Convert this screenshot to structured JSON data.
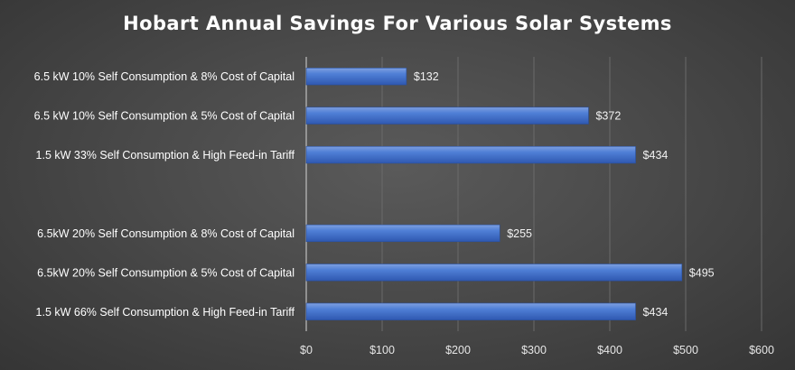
{
  "chart_data": {
    "type": "bar",
    "orientation": "horizontal",
    "title": "Hobart Annual Savings For Various Solar Systems",
    "categories": [
      "6.5 kW 10% Self Consumption & 8% Cost of Capital",
      "6.5 kW 10% Self Consumption & 5% Cost of Capital",
      "1.5 kW 33% Self Consumption & High Feed-in Tariff",
      "",
      "6.5kW 20% Self Consumption & 8% Cost of Capital",
      "6.5kW 20% Self Consumption & 5% Cost of Capital",
      "1.5 kW 66% Self Consumption & High Feed-in Tariff"
    ],
    "values": [
      132,
      372,
      434,
      null,
      255,
      495,
      434
    ],
    "value_labels": [
      "$132",
      "$372",
      "$434",
      "",
      "$255",
      "$495",
      "$434"
    ],
    "xlim": [
      0,
      600
    ],
    "xticks": [
      0,
      100,
      200,
      300,
      400,
      500,
      600
    ],
    "xtick_labels": [
      "$0",
      "$100",
      "$200",
      "$300",
      "$400",
      "$500",
      "$600"
    ],
    "xlabel": "",
    "ylabel": "",
    "grid": "vertical",
    "legend": "none",
    "bar_color": "#4472c4",
    "background_color": "#404040"
  }
}
